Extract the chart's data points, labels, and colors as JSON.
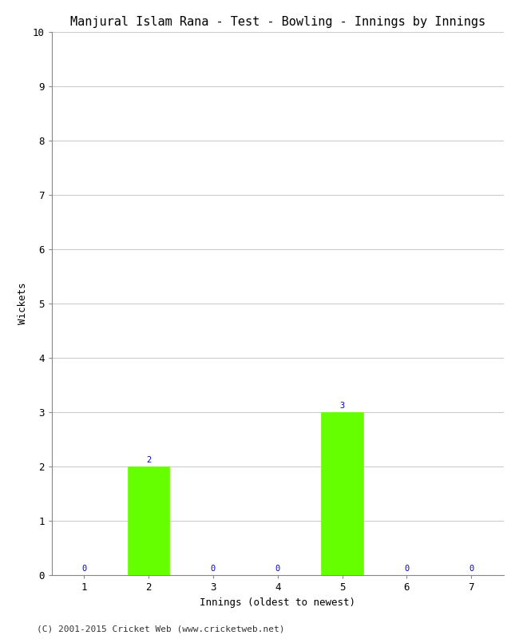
{
  "title": "Manjural Islam Rana - Test - Bowling - Innings by Innings",
  "xlabel": "Innings (oldest to newest)",
  "ylabel": "Wickets",
  "categories": [
    1,
    2,
    3,
    4,
    5,
    6,
    7
  ],
  "values": [
    0,
    2,
    0,
    0,
    3,
    0,
    0
  ],
  "bar_color": "#66ff00",
  "bar_edge_color": "#66ff00",
  "label_color": "#0000cc",
  "ylim": [
    0,
    10
  ],
  "yticks": [
    0,
    1,
    2,
    3,
    4,
    5,
    6,
    7,
    8,
    9,
    10
  ],
  "background_color": "#ffffff",
  "grid_color": "#cccccc",
  "footer": "(C) 2001-2015 Cricket Web (www.cricketweb.net)",
  "title_fontsize": 11,
  "label_fontsize": 9,
  "tick_fontsize": 9,
  "footer_fontsize": 8,
  "annotation_fontsize": 7.5
}
